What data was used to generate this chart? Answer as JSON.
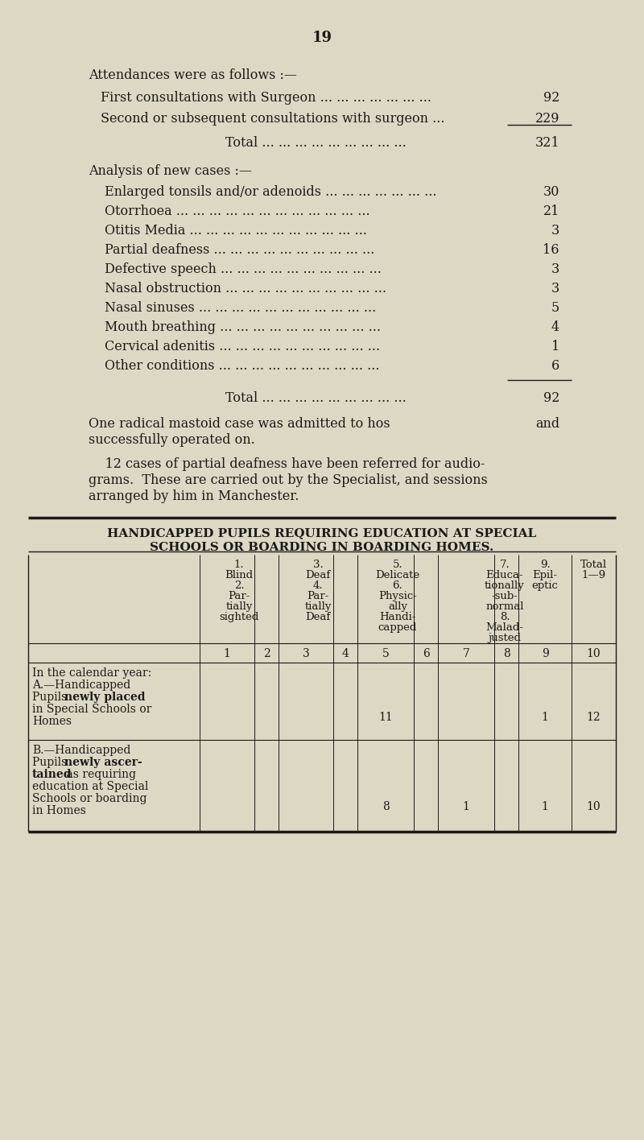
{
  "bg_color": "#ddd8c4",
  "text_color": "#1a1a1a",
  "page_number": "19",
  "attendances_header": "Attendances were as follows :—",
  "attendance_rows": [
    {
      "label": "First consultations with Surgeon ... ... ... ... ... ... ...",
      "value": "92"
    },
    {
      "label": "Second or subsequent consultations with surgeon ...",
      "value": "229"
    }
  ],
  "attendance_total_label": "Total ... ... ... ... ... ... ... ... ...",
  "attendance_total_value": "321",
  "analysis_header": "Analysis of new cases :—",
  "analysis_rows": [
    {
      "label": "Enlarged tonsils and/or adenoids ... ... ... ... ... ... ...",
      "value": "30"
    },
    {
      "label": "Otorrhoea ... ... ... ... ... ... ... ... ... ... ... ...",
      "value": "21"
    },
    {
      "label": "Otitis Media ... ... ... ... ... ... ... ... ... ... ...",
      "value": "3"
    },
    {
      "label": "Partial deafness ... ... ... ... ... ... ... ... ... ...",
      "value": "16"
    },
    {
      "label": "Defective speech ... ... ... ... ... ... ... ... ... ...",
      "value": "3"
    },
    {
      "label": "Nasal obstruction ... ... ... ... ... ... ... ... ... ...",
      "value": "3"
    },
    {
      "label": "Nasal sinuses ... ... ... ... ... ... ... ... ... ... ...",
      "value": "5"
    },
    {
      "label": "Mouth breathing ... ... ... ... ... ... ... ... ... ...",
      "value": "4"
    },
    {
      "label": "Cervical adenitis ... ... ... ... ... ... ... ... ... ...",
      "value": "1"
    },
    {
      "label": "Other conditions ... ... ... ... ... ... ... ... ... ...",
      "value": "6"
    }
  ],
  "analysis_total_label": "Total ... ... ... ... ... ... ... ... ...",
  "analysis_total_value": "92",
  "paragraph1": "One radical mastoid case was admitted to hospital and successfully operated on.",
  "paragraph2_line1": "    12 cases of partial deafness have been referred for audio-",
  "paragraph2_line2": "grams.  These are carried out by the Specialist, and sessions",
  "paragraph2_line3": "arranged by him in Manchester.",
  "table_title1": "HANDICAPPED PUPILS REQUIRING EDUCATION AT SPECIAL",
  "table_title2": "SCHOOLS OR BOARDING IN BOARDING HOMES.",
  "col_header_lines": [
    [
      "1.",
      "Blind",
      "2.",
      "Par-",
      "tially",
      "sighted"
    ],
    [
      "3.",
      "Deaf",
      "4.",
      "Par-",
      "tially",
      "Deaf"
    ],
    [
      "5.",
      "Delicate",
      "6.",
      "Physic-",
      "ally",
      "Handi-",
      "capped"
    ],
    [
      "7.",
      "Educa-",
      "tionally",
      "-sub-",
      "normal",
      "8.",
      "Malad-",
      "justed"
    ],
    [
      "9.",
      "Epil-",
      "eptic"
    ],
    [
      "Total",
      "1—9"
    ]
  ],
  "col_nums": [
    "1",
    "2",
    "3",
    "4",
    "5",
    "6",
    "7",
    "8",
    "9",
    "10"
  ],
  "row_A_data": [
    "",
    "",
    "",
    "",
    "11",
    "",
    "",
    "",
    "1",
    "12"
  ],
  "row_B_data": [
    "",
    "",
    "",
    "",
    "8",
    "",
    "1",
    "",
    "1",
    "10"
  ]
}
